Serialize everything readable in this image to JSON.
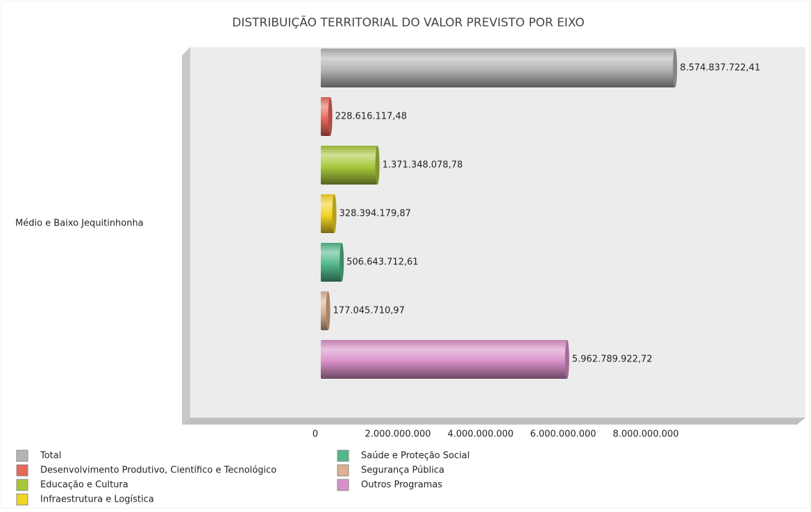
{
  "chart_data": {
    "type": "bar",
    "orientation": "horizontal",
    "title": "DISTRIBUIÇÃO TERRITORIAL DO VALOR PREVISTO POR EIXO",
    "categories": [
      "Médio e Baixo Jequitinhonha"
    ],
    "series": [
      {
        "name": "Total",
        "color": "#b4b4b4",
        "values": [
          8574837722.41
        ],
        "value_labels": [
          "8.574.837.722,41"
        ]
      },
      {
        "name": "Desenvolvimento Produtivo, Científico e Tecnológico",
        "color": "#e8685a",
        "values": [
          228616117.48
        ],
        "value_labels": [
          "228.616.117,48"
        ]
      },
      {
        "name": "Educação e Cultura",
        "color": "#a8c83c",
        "values": [
          1371348078.78
        ],
        "value_labels": [
          "1.371.348.078,78"
        ]
      },
      {
        "name": "Infraestrutura e Logística",
        "color": "#f2d424",
        "values": [
          328394179.87
        ],
        "value_labels": [
          "328.394.179,87"
        ]
      },
      {
        "name": "Saúde e Proteção Social",
        "color": "#52b88a",
        "values": [
          506643712.61
        ],
        "value_labels": [
          "506.643.712,61"
        ]
      },
      {
        "name": "Segurança Pública",
        "color": "#dcb090",
        "values": [
          177045710.97
        ],
        "value_labels": [
          "177.045.710,97"
        ]
      },
      {
        "name": "Outros Programas",
        "color": "#d890c8",
        "values": [
          5962789922.72
        ],
        "value_labels": [
          "5.962.789.922,72"
        ]
      }
    ],
    "xlim": [
      0,
      10000000000
    ],
    "xticks": [
      0,
      {
        "value": 2000000000,
        "label": "2.000.000.000"
      },
      {
        "value": 4000000000,
        "label": "4.000.000.000"
      },
      {
        "value": 6000000000,
        "label": "6.000.000.000"
      },
      {
        "value": 8000000000,
        "label": "8.000.000.000"
      }
    ],
    "legend": "bottom-left"
  }
}
